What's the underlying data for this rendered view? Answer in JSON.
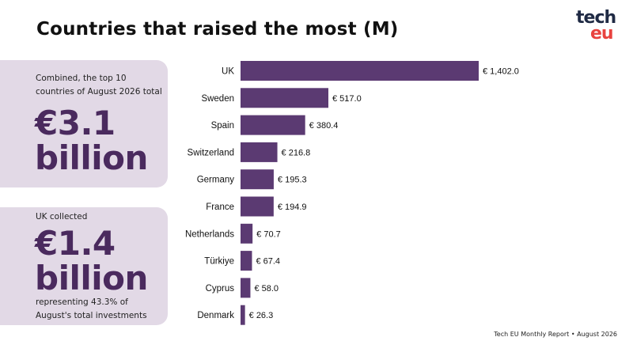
{
  "header": {
    "title": "Countries that raised the most (M)"
  },
  "logo": {
    "line1": "tech",
    "line2": "eu"
  },
  "card_total": {
    "caption": "Combined, the top 10 countries of August 2026 total",
    "value": "€3.1",
    "unit": "billion"
  },
  "card_uk": {
    "caption_top": "UK collected",
    "value": "€1.4",
    "unit": "billion",
    "caption_bottom": "representing 43.3% of August's total investments"
  },
  "footer": {
    "source": "Tech EU Monthly Report • August 2026"
  },
  "colors": {
    "bar": "#5b3a72",
    "card": "#e2d9e6",
    "accent_text": "#4a2a5e"
  },
  "chart_data": {
    "type": "bar",
    "orientation": "horizontal",
    "categories": [
      "UK",
      "Sweden",
      "Spain",
      "Switzerland",
      "Germany",
      "France",
      "Netherlands",
      "Türkiye",
      "Cyprus",
      "Denmark"
    ],
    "values": [
      1402.0,
      517.0,
      380.4,
      216.8,
      195.3,
      194.9,
      70.7,
      67.4,
      58.0,
      26.3
    ],
    "labels": [
      "€ 1,402.0",
      "€ 517.0",
      "€ 380.4",
      "€ 216.8",
      "€ 195.3",
      "€ 194.9",
      "€ 70.7",
      "€ 67.4",
      "€ 58.0",
      "€ 26.3"
    ],
    "title": "Countries that raised the most (M)",
    "grid": false
  }
}
